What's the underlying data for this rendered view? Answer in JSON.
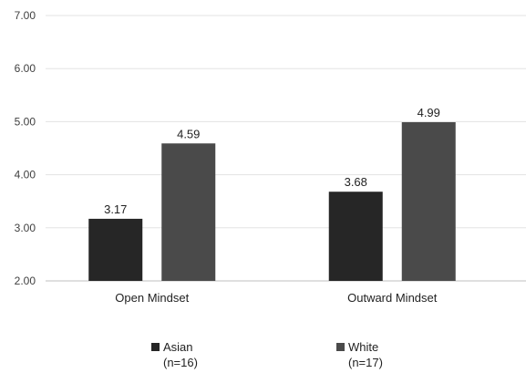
{
  "chart_data": {
    "type": "bar",
    "categories": [
      "Open Mindset",
      "Outward Mindset"
    ],
    "series": [
      {
        "name": "Asian",
        "sample": "(n=16)",
        "values": [
          3.17,
          3.68
        ],
        "color": "#262626"
      },
      {
        "name": "White",
        "sample": "(n=17)",
        "values": [
          4.59,
          4.99
        ],
        "color": "#4a4a4a"
      }
    ],
    "yticks": [
      "2.00",
      "3.00",
      "4.00",
      "5.00",
      "6.00",
      "7.00"
    ],
    "value_labels": [
      [
        "3.17",
        "3.68"
      ],
      [
        "4.59",
        "4.99"
      ]
    ],
    "ylim": [
      2,
      7
    ],
    "grid": true,
    "legend_position": "bottom"
  }
}
